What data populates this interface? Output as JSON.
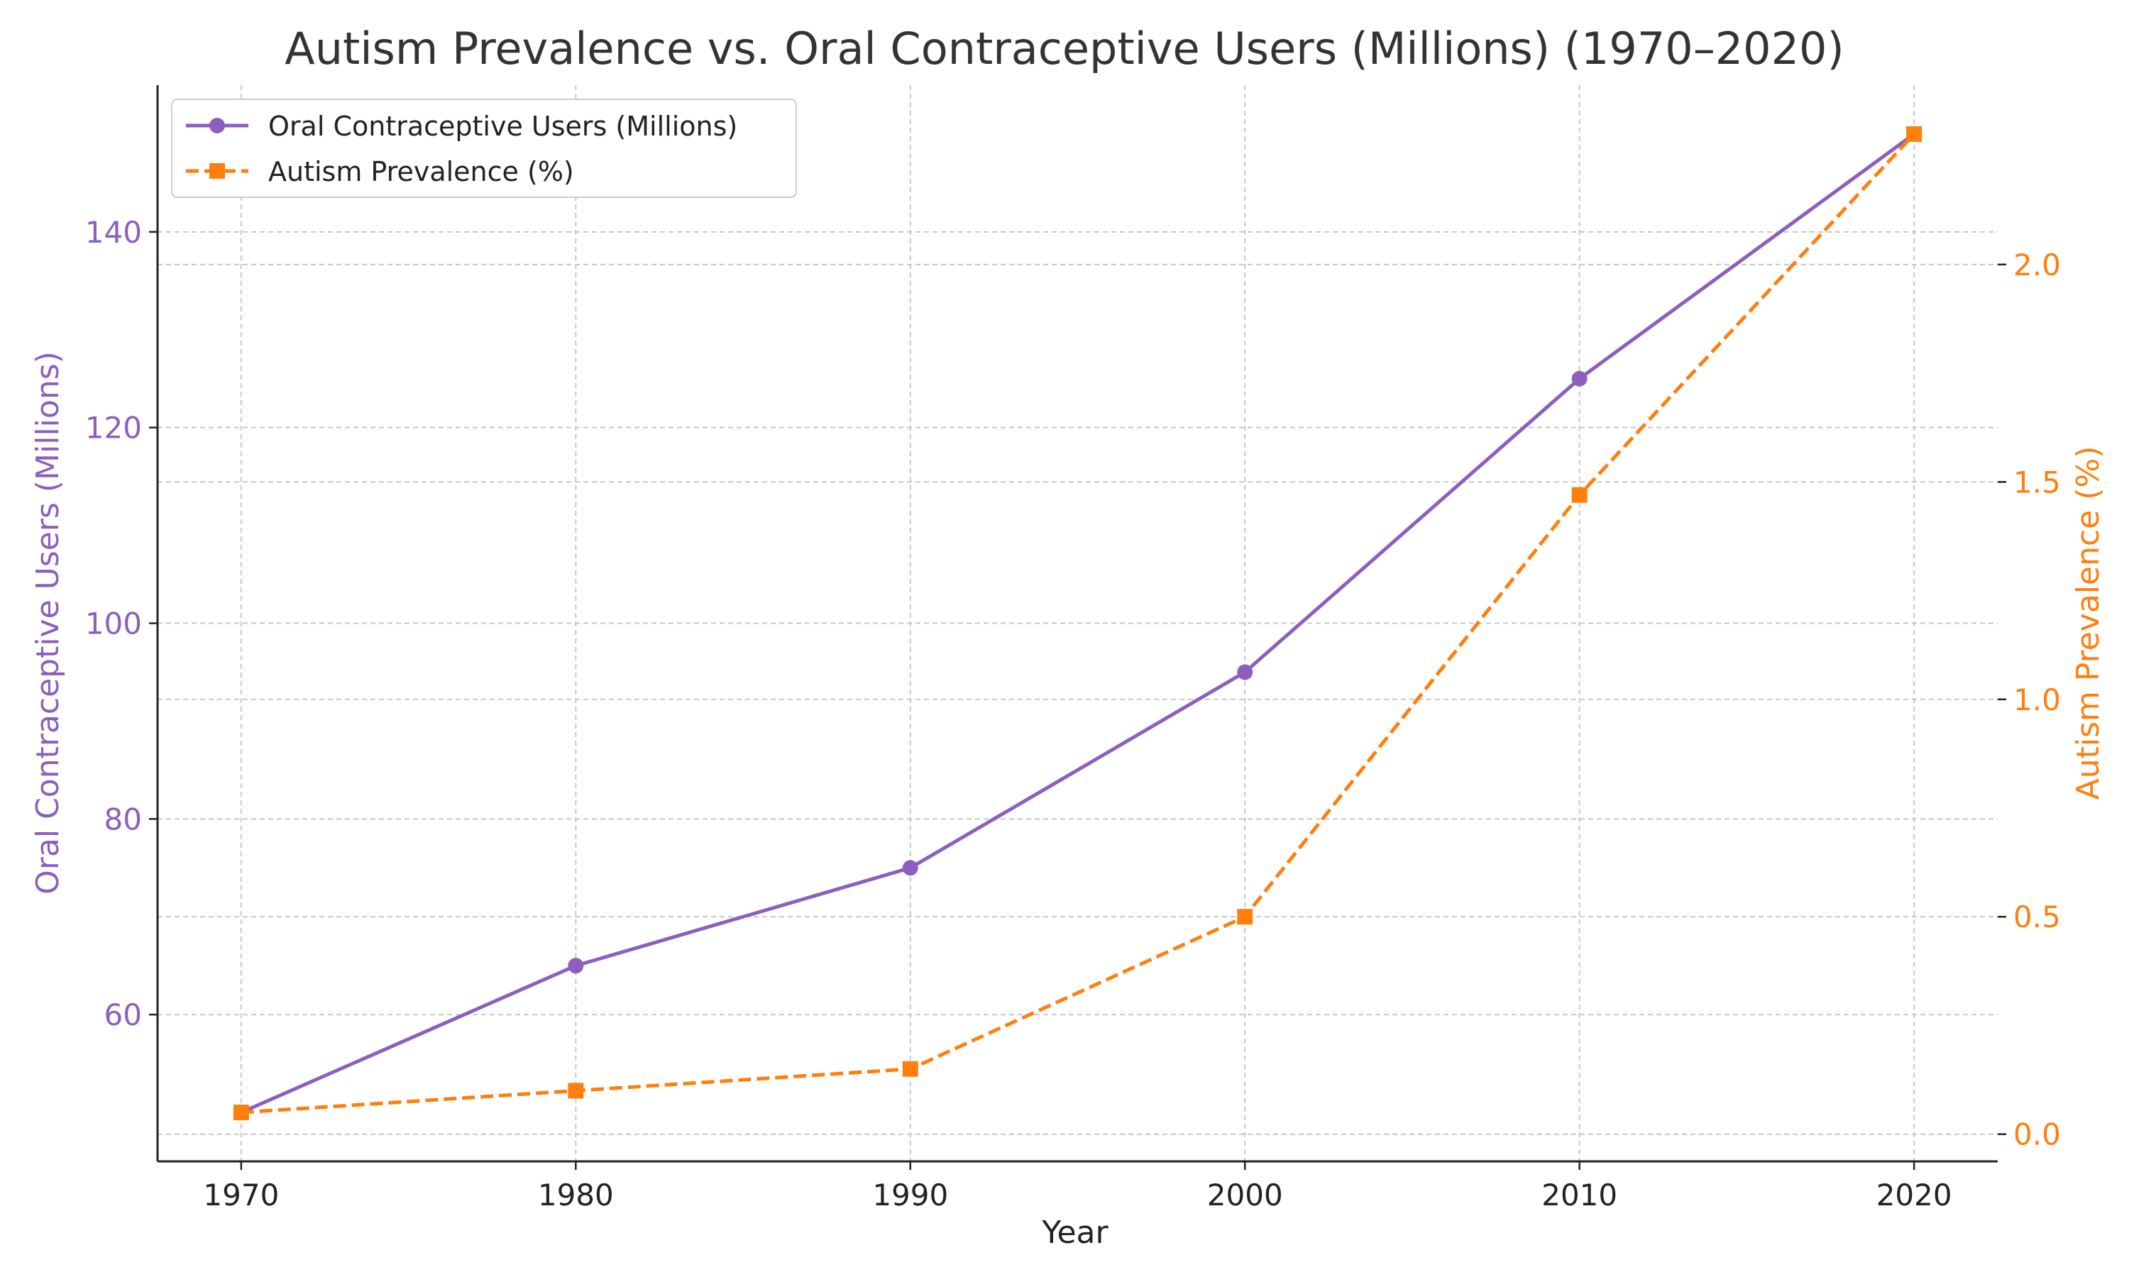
{
  "chart_data": {
    "type": "line",
    "title": "Autism Prevalence vs. Oral Contraceptive Users (Millions) (1970–2020)",
    "xlabel": "Year",
    "x": [
      1970,
      1980,
      1990,
      2000,
      2010,
      2020
    ],
    "xticks": [
      "1970",
      "1980",
      "1990",
      "2000",
      "2010",
      "2020"
    ],
    "xlim": [
      1967.5,
      2022.5
    ],
    "grid": true,
    "legend_position": "top-left",
    "series": [
      {
        "name": "Oral Contraceptive Users (Millions)",
        "axis": "left",
        "values": [
          50,
          65,
          75,
          95,
          125,
          150
        ],
        "color": "#8c5fbf",
        "line_style": "solid",
        "marker": "circle"
      },
      {
        "name": "Autism Prevalence (%)",
        "axis": "right",
        "values": [
          0.05,
          0.1,
          0.15,
          0.5,
          1.47,
          2.3
        ],
        "color": "#ff7f0e",
        "line_style": "dashed",
        "marker": "square"
      }
    ],
    "y_left": {
      "label": "Oral Contraceptive Users (Millions)",
      "ticks": [
        60,
        80,
        100,
        120,
        140
      ],
      "ylim": [
        45,
        155
      ],
      "color": "#8c5fbf"
    },
    "y_right": {
      "label": "Autism Prevalence (%)",
      "ticks": [
        "0.0",
        "0.5",
        "1.0",
        "1.5",
        "2.0"
      ],
      "ylim": [
        -0.0625,
        2.4125
      ],
      "color": "#ff7f0e"
    }
  }
}
